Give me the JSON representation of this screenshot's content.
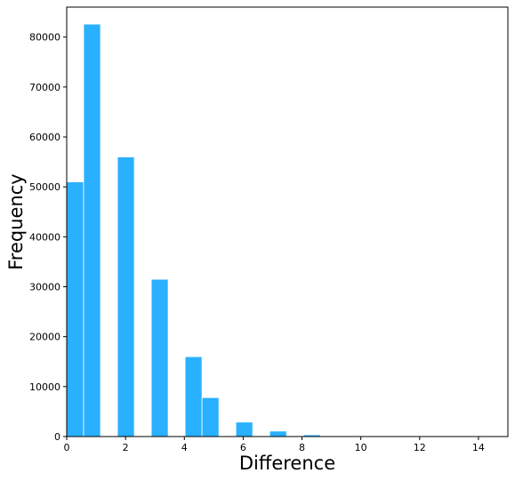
{
  "chart_data": {
    "type": "bar",
    "title": "",
    "xlabel": "Difference",
    "ylabel": "Frequency",
    "xlim": [
      0,
      15
    ],
    "ylim": [
      0,
      86000
    ],
    "grid": false,
    "bar_color": "#29b0ff",
    "bar_edge_color": "#ffffff",
    "x_ticks": [
      0,
      2,
      4,
      6,
      8,
      10,
      12,
      14
    ],
    "y_ticks": [
      0,
      10000,
      20000,
      30000,
      40000,
      50000,
      60000,
      70000,
      80000
    ],
    "bins": [
      {
        "x0": 0.0,
        "x1": 0.575,
        "value": 51000
      },
      {
        "x0": 0.575,
        "x1": 1.15,
        "value": 82600
      },
      {
        "x0": 1.725,
        "x1": 2.3,
        "value": 56000
      },
      {
        "x0": 2.875,
        "x1": 3.45,
        "value": 31500
      },
      {
        "x0": 4.025,
        "x1": 4.6,
        "value": 16000
      },
      {
        "x0": 4.6,
        "x1": 5.175,
        "value": 7800
      },
      {
        "x0": 5.75,
        "x1": 6.325,
        "value": 2900
      },
      {
        "x0": 6.9,
        "x1": 7.475,
        "value": 1100
      },
      {
        "x0": 8.05,
        "x1": 8.625,
        "value": 350
      },
      {
        "x0": 8.625,
        "x1": 9.2,
        "value": 100
      },
      {
        "x0": 9.775,
        "x1": 10.35,
        "value": 50
      },
      {
        "x0": 10.925,
        "x1": 11.5,
        "value": 20
      },
      {
        "x0": 12.075,
        "x1": 12.65,
        "value": 10
      },
      {
        "x0": 13.8,
        "x1": 14.375,
        "value": 5
      }
    ]
  }
}
